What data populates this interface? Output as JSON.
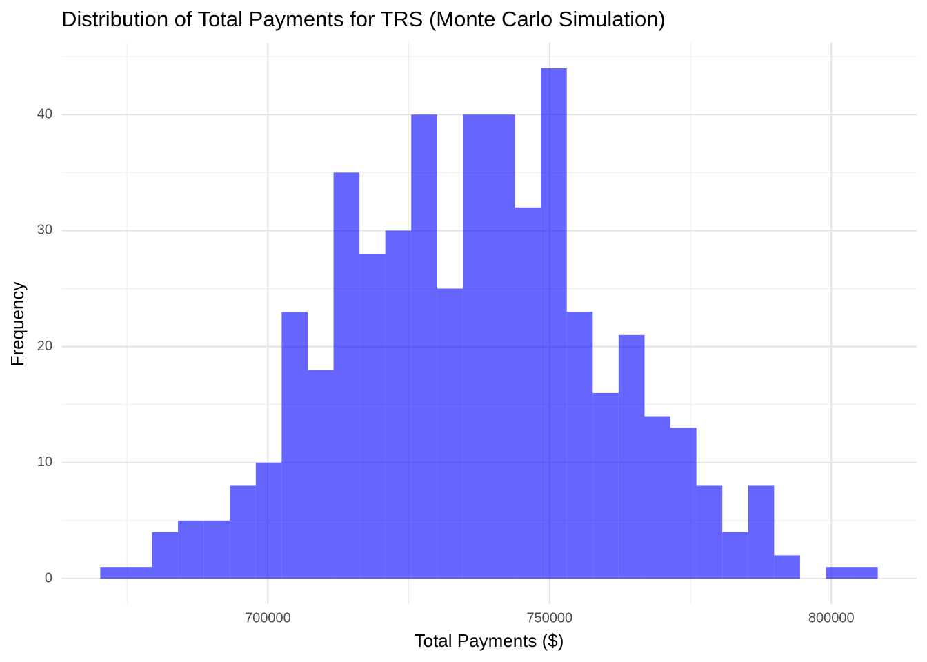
{
  "chart_data": {
    "type": "histogram",
    "title": "Distribution of Total Payments for TRS (Monte Carlo Simulation)",
    "x_label": "Total Payments ($)",
    "y_label": "Frequency",
    "bins": [
      670250,
      674850,
      679450,
      684050,
      688650,
      693250,
      697850,
      702450,
      707050,
      711650,
      716250,
      720850,
      725450,
      730050,
      734650,
      739250,
      743850,
      748450,
      753050,
      757650,
      762250,
      766850,
      771450,
      776050,
      780650,
      785250,
      789850,
      794450,
      799050,
      803650,
      808250
    ],
    "values": [
      1,
      1,
      4,
      5,
      5,
      8,
      10,
      23,
      18,
      35,
      28,
      30,
      40,
      25,
      40,
      40,
      32,
      44,
      23,
      16,
      21,
      14,
      13,
      8,
      4,
      8,
      2,
      0,
      1,
      1
    ],
    "color": "#0000ff",
    "opacity": 0.6,
    "xlim": [
      663350,
      815150
    ],
    "xticks": [
      700000,
      750000,
      800000
    ],
    "xminor": [
      675000,
      725000,
      775000
    ],
    "ylim": [
      -2.2,
      46.2
    ],
    "yticks": [
      0,
      10,
      20,
      30,
      40
    ],
    "yminor": [
      5,
      15,
      25,
      35,
      45
    ],
    "grid": true
  }
}
